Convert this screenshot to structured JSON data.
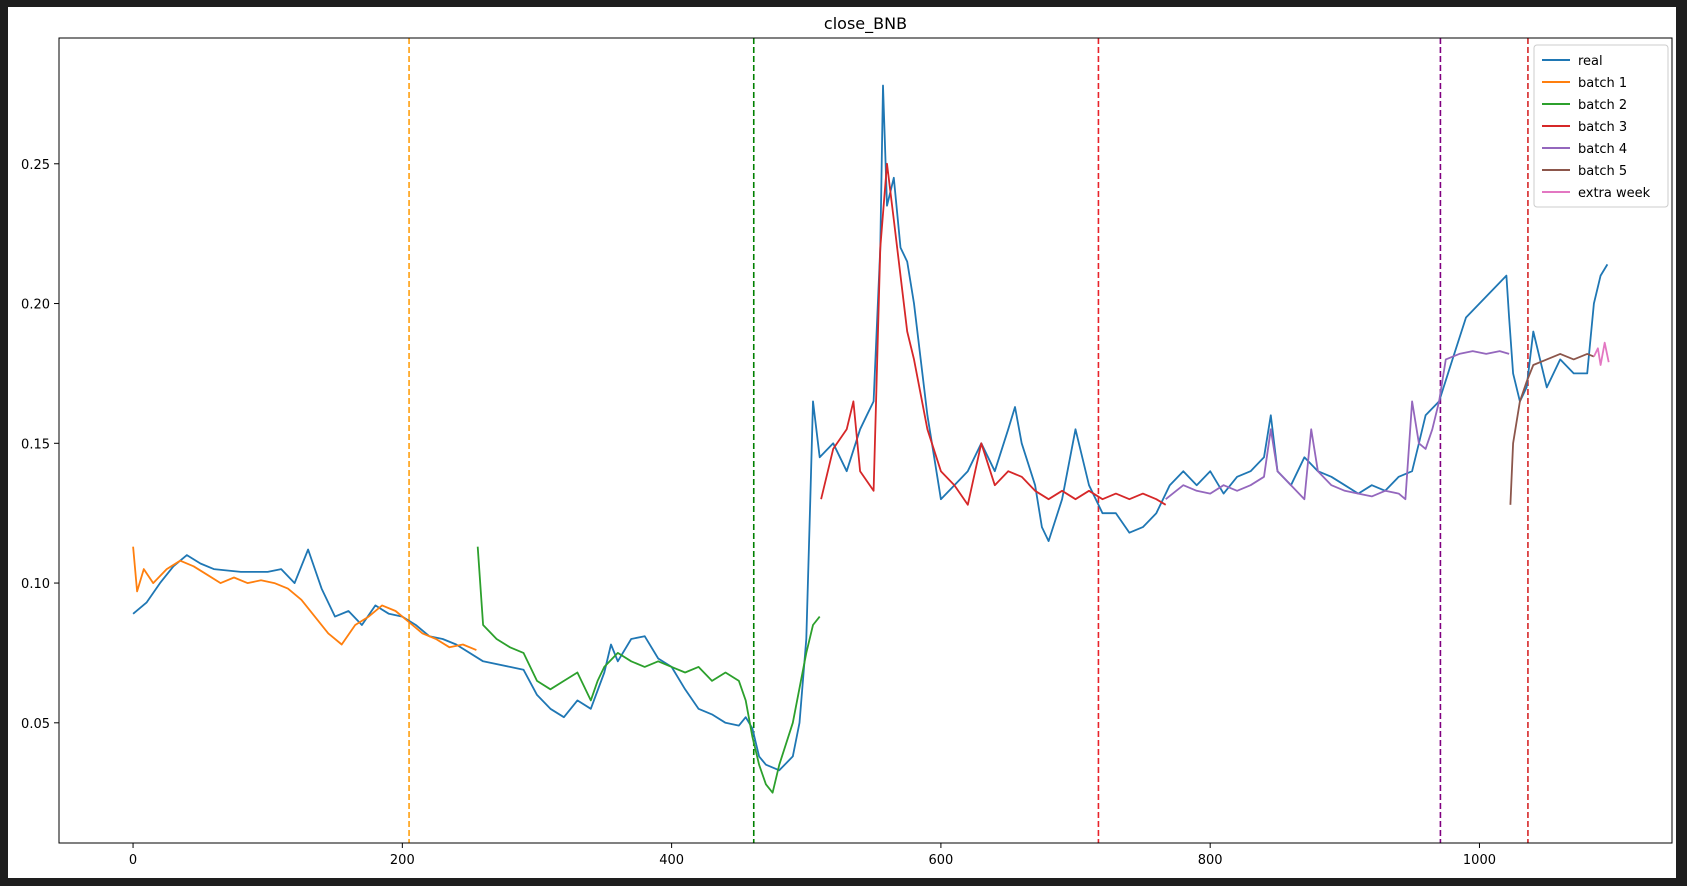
{
  "chart_data": {
    "type": "line",
    "title": "close_BNB",
    "xlabel": "",
    "ylabel": "",
    "xlim": [
      -55,
      1143
    ],
    "ylim": [
      0.007,
      0.295
    ],
    "xticks": [
      0,
      200,
      400,
      600,
      800,
      1000
    ],
    "yticks": [
      0.05,
      0.1,
      0.15,
      0.2,
      0.25
    ],
    "xtick_labels": [
      "0",
      "200",
      "400",
      "600",
      "800",
      "1000"
    ],
    "ytick_labels": [
      "0.05",
      "0.10",
      "0.15",
      "0.20",
      "0.25"
    ],
    "grid": false,
    "legend_position": "top-right",
    "vlines": [
      {
        "x": 205,
        "color": "#ff9f10"
      },
      {
        "x": 461,
        "color": "#008000"
      },
      {
        "x": 717,
        "color": "#e8232a"
      },
      {
        "x": 971,
        "color": "#800080"
      },
      {
        "x": 1036,
        "color": "#d62728"
      }
    ],
    "series": [
      {
        "name": "real",
        "color": "#1f77b4",
        "points": [
          [
            0,
            0.089
          ],
          [
            10,
            0.093
          ],
          [
            20,
            0.1
          ],
          [
            30,
            0.106
          ],
          [
            40,
            0.11
          ],
          [
            50,
            0.107
          ],
          [
            60,
            0.105
          ],
          [
            80,
            0.104
          ],
          [
            100,
            0.104
          ],
          [
            110,
            0.105
          ],
          [
            120,
            0.1
          ],
          [
            130,
            0.112
          ],
          [
            140,
            0.098
          ],
          [
            150,
            0.088
          ],
          [
            160,
            0.09
          ],
          [
            170,
            0.085
          ],
          [
            180,
            0.092
          ],
          [
            190,
            0.089
          ],
          [
            200,
            0.088
          ],
          [
            210,
            0.085
          ],
          [
            220,
            0.081
          ],
          [
            230,
            0.08
          ],
          [
            240,
            0.078
          ],
          [
            260,
            0.072
          ],
          [
            280,
            0.07
          ],
          [
            290,
            0.069
          ],
          [
            300,
            0.06
          ],
          [
            310,
            0.055
          ],
          [
            320,
            0.052
          ],
          [
            330,
            0.058
          ],
          [
            340,
            0.055
          ],
          [
            350,
            0.068
          ],
          [
            355,
            0.078
          ],
          [
            360,
            0.072
          ],
          [
            370,
            0.08
          ],
          [
            380,
            0.081
          ],
          [
            390,
            0.073
          ],
          [
            400,
            0.07
          ],
          [
            410,
            0.062
          ],
          [
            420,
            0.055
          ],
          [
            430,
            0.053
          ],
          [
            440,
            0.05
          ],
          [
            450,
            0.049
          ],
          [
            455,
            0.052
          ],
          [
            460,
            0.048
          ],
          [
            465,
            0.038
          ],
          [
            470,
            0.035
          ],
          [
            480,
            0.033
          ],
          [
            490,
            0.038
          ],
          [
            495,
            0.05
          ],
          [
            500,
            0.08
          ],
          [
            503,
            0.13
          ],
          [
            505,
            0.165
          ],
          [
            510,
            0.145
          ],
          [
            520,
            0.15
          ],
          [
            530,
            0.14
          ],
          [
            540,
            0.155
          ],
          [
            545,
            0.16
          ],
          [
            550,
            0.165
          ],
          [
            555,
            0.22
          ],
          [
            557,
            0.278
          ],
          [
            560,
            0.235
          ],
          [
            565,
            0.245
          ],
          [
            570,
            0.22
          ],
          [
            575,
            0.215
          ],
          [
            580,
            0.2
          ],
          [
            585,
            0.18
          ],
          [
            590,
            0.16
          ],
          [
            595,
            0.145
          ],
          [
            600,
            0.13
          ],
          [
            610,
            0.135
          ],
          [
            620,
            0.14
          ],
          [
            630,
            0.15
          ],
          [
            640,
            0.14
          ],
          [
            650,
            0.155
          ],
          [
            655,
            0.163
          ],
          [
            660,
            0.15
          ],
          [
            670,
            0.135
          ],
          [
            675,
            0.12
          ],
          [
            680,
            0.115
          ],
          [
            690,
            0.13
          ],
          [
            700,
            0.155
          ],
          [
            710,
            0.135
          ],
          [
            720,
            0.125
          ],
          [
            730,
            0.125
          ],
          [
            740,
            0.118
          ],
          [
            750,
            0.12
          ],
          [
            760,
            0.125
          ],
          [
            770,
            0.135
          ],
          [
            780,
            0.14
          ],
          [
            790,
            0.135
          ],
          [
            800,
            0.14
          ],
          [
            810,
            0.132
          ],
          [
            820,
            0.138
          ],
          [
            830,
            0.14
          ],
          [
            840,
            0.145
          ],
          [
            845,
            0.16
          ],
          [
            850,
            0.14
          ],
          [
            860,
            0.135
          ],
          [
            870,
            0.145
          ],
          [
            880,
            0.14
          ],
          [
            890,
            0.138
          ],
          [
            900,
            0.135
          ],
          [
            910,
            0.132
          ],
          [
            920,
            0.135
          ],
          [
            930,
            0.133
          ],
          [
            940,
            0.138
          ],
          [
            950,
            0.14
          ],
          [
            955,
            0.15
          ],
          [
            960,
            0.16
          ],
          [
            970,
            0.165
          ],
          [
            980,
            0.18
          ],
          [
            990,
            0.195
          ],
          [
            1000,
            0.2
          ],
          [
            1010,
            0.205
          ],
          [
            1020,
            0.21
          ],
          [
            1022,
            0.195
          ],
          [
            1025,
            0.175
          ],
          [
            1030,
            0.165
          ],
          [
            1035,
            0.17
          ],
          [
            1040,
            0.19
          ],
          [
            1050,
            0.17
          ],
          [
            1060,
            0.18
          ],
          [
            1070,
            0.175
          ],
          [
            1080,
            0.175
          ],
          [
            1085,
            0.2
          ],
          [
            1090,
            0.21
          ],
          [
            1095,
            0.214
          ]
        ]
      },
      {
        "name": "batch 1",
        "color": "#ff7f0e",
        "points": [
          [
            0,
            0.113
          ],
          [
            3,
            0.097
          ],
          [
            8,
            0.105
          ],
          [
            15,
            0.1
          ],
          [
            25,
            0.105
          ],
          [
            35,
            0.108
          ],
          [
            45,
            0.106
          ],
          [
            55,
            0.103
          ],
          [
            65,
            0.1
          ],
          [
            75,
            0.102
          ],
          [
            85,
            0.1
          ],
          [
            95,
            0.101
          ],
          [
            105,
            0.1
          ],
          [
            115,
            0.098
          ],
          [
            125,
            0.094
          ],
          [
            135,
            0.088
          ],
          [
            145,
            0.082
          ],
          [
            155,
            0.078
          ],
          [
            165,
            0.085
          ],
          [
            175,
            0.088
          ],
          [
            185,
            0.092
          ],
          [
            195,
            0.09
          ],
          [
            205,
            0.086
          ],
          [
            215,
            0.082
          ],
          [
            225,
            0.08
          ],
          [
            235,
            0.077
          ],
          [
            245,
            0.078
          ],
          [
            255,
            0.076
          ]
        ]
      },
      {
        "name": "batch 2",
        "color": "#2ca02c",
        "points": [
          [
            256,
            0.113
          ],
          [
            260,
            0.085
          ],
          [
            270,
            0.08
          ],
          [
            280,
            0.077
          ],
          [
            290,
            0.075
          ],
          [
            300,
            0.065
          ],
          [
            310,
            0.062
          ],
          [
            320,
            0.065
          ],
          [
            330,
            0.068
          ],
          [
            340,
            0.058
          ],
          [
            345,
            0.065
          ],
          [
            350,
            0.07
          ],
          [
            360,
            0.075
          ],
          [
            370,
            0.072
          ],
          [
            380,
            0.07
          ],
          [
            390,
            0.072
          ],
          [
            400,
            0.07
          ],
          [
            410,
            0.068
          ],
          [
            420,
            0.07
          ],
          [
            430,
            0.065
          ],
          [
            440,
            0.068
          ],
          [
            450,
            0.065
          ],
          [
            455,
            0.058
          ],
          [
            460,
            0.045
          ],
          [
            465,
            0.035
          ],
          [
            470,
            0.028
          ],
          [
            475,
            0.025
          ],
          [
            480,
            0.035
          ],
          [
            490,
            0.05
          ],
          [
            500,
            0.075
          ],
          [
            505,
            0.085
          ],
          [
            510,
            0.088
          ]
        ]
      },
      {
        "name": "batch 3",
        "color": "#d62728",
        "points": [
          [
            511,
            0.13
          ],
          [
            520,
            0.148
          ],
          [
            530,
            0.155
          ],
          [
            535,
            0.165
          ],
          [
            540,
            0.14
          ],
          [
            550,
            0.133
          ],
          [
            555,
            0.22
          ],
          [
            560,
            0.25
          ],
          [
            565,
            0.23
          ],
          [
            570,
            0.21
          ],
          [
            575,
            0.19
          ],
          [
            580,
            0.18
          ],
          [
            590,
            0.155
          ],
          [
            600,
            0.14
          ],
          [
            610,
            0.135
          ],
          [
            620,
            0.128
          ],
          [
            630,
            0.15
          ],
          [
            640,
            0.135
          ],
          [
            650,
            0.14
          ],
          [
            660,
            0.138
          ],
          [
            670,
            0.133
          ],
          [
            680,
            0.13
          ],
          [
            690,
            0.133
          ],
          [
            700,
            0.13
          ],
          [
            710,
            0.133
          ],
          [
            720,
            0.13
          ],
          [
            730,
            0.132
          ],
          [
            740,
            0.13
          ],
          [
            750,
            0.132
          ],
          [
            760,
            0.13
          ],
          [
            767,
            0.128
          ]
        ]
      },
      {
        "name": "batch 4",
        "color": "#9467bd",
        "points": [
          [
            767,
            0.13
          ],
          [
            780,
            0.135
          ],
          [
            790,
            0.133
          ],
          [
            800,
            0.132
          ],
          [
            810,
            0.135
          ],
          [
            820,
            0.133
          ],
          [
            830,
            0.135
          ],
          [
            840,
            0.138
          ],
          [
            845,
            0.155
          ],
          [
            850,
            0.14
          ],
          [
            860,
            0.135
          ],
          [
            870,
            0.13
          ],
          [
            875,
            0.155
          ],
          [
            880,
            0.14
          ],
          [
            890,
            0.135
          ],
          [
            900,
            0.133
          ],
          [
            910,
            0.132
          ],
          [
            920,
            0.131
          ],
          [
            930,
            0.133
          ],
          [
            940,
            0.132
          ],
          [
            945,
            0.13
          ],
          [
            950,
            0.165
          ],
          [
            955,
            0.15
          ],
          [
            960,
            0.148
          ],
          [
            965,
            0.155
          ],
          [
            970,
            0.165
          ],
          [
            975,
            0.18
          ],
          [
            985,
            0.182
          ],
          [
            995,
            0.183
          ],
          [
            1005,
            0.182
          ],
          [
            1015,
            0.183
          ],
          [
            1022,
            0.182
          ]
        ]
      },
      {
        "name": "batch 5",
        "color": "#8c564b",
        "points": [
          [
            1023,
            0.128
          ],
          [
            1025,
            0.15
          ],
          [
            1030,
            0.165
          ],
          [
            1035,
            0.172
          ],
          [
            1040,
            0.178
          ],
          [
            1050,
            0.18
          ],
          [
            1060,
            0.182
          ],
          [
            1070,
            0.18
          ],
          [
            1080,
            0.182
          ],
          [
            1085,
            0.181
          ]
        ]
      },
      {
        "name": "extra week",
        "color": "#e377c2",
        "points": [
          [
            1085,
            0.181
          ],
          [
            1088,
            0.184
          ],
          [
            1090,
            0.178
          ],
          [
            1093,
            0.186
          ],
          [
            1096,
            0.179
          ]
        ]
      }
    ]
  }
}
